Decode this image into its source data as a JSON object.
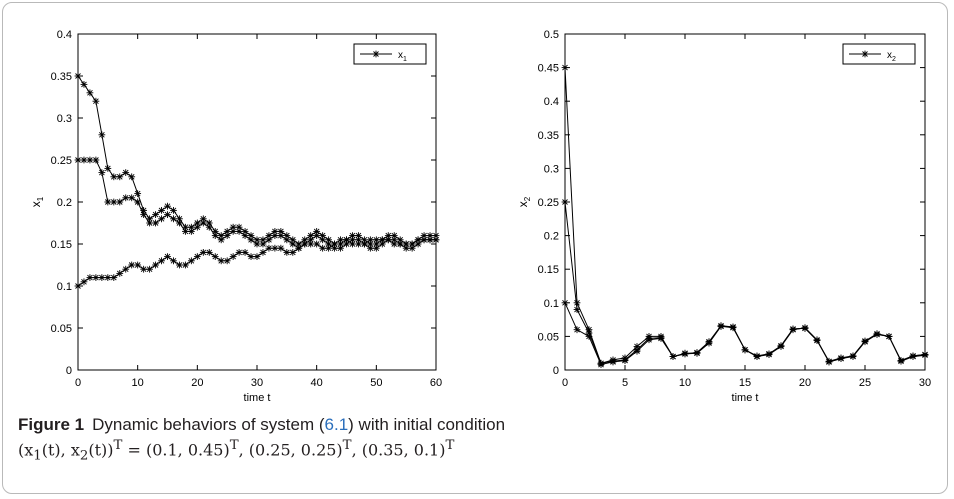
{
  "chart_data": [
    {
      "type": "line",
      "xlabel": "time t",
      "ylabel": "x",
      "ylabel_sub": "1",
      "xlim": [
        0,
        60
      ],
      "ylim": [
        0,
        0.4
      ],
      "xticks": [
        0,
        10,
        20,
        30,
        40,
        50,
        60
      ],
      "yticks": [
        0,
        0.05,
        0.1,
        0.15,
        0.2,
        0.25,
        0.3,
        0.35,
        0.4
      ],
      "ytick_labels": [
        "0",
        "0.05",
        "0.1",
        "0.15",
        "0.2",
        "0.25",
        "0.3",
        "0.35",
        "0.4"
      ],
      "legend": {
        "label": "x",
        "sub": "1",
        "position": "top-right"
      },
      "marker": "asterisk",
      "series": [
        {
          "x": [
            0,
            1,
            2,
            3,
            4,
            5,
            6,
            7,
            8,
            9,
            10,
            11,
            12,
            13,
            14,
            15,
            16,
            17,
            18,
            19,
            20,
            21,
            22,
            23,
            24,
            25,
            26,
            27,
            28,
            29,
            30,
            31,
            32,
            33,
            34,
            35,
            36,
            37,
            38,
            39,
            40,
            41,
            42,
            43,
            44,
            45,
            46,
            47,
            48,
            49,
            50,
            51,
            52,
            53,
            54,
            55,
            56,
            57,
            58,
            59,
            60
          ],
          "values": [
            0.35,
            0.34,
            0.33,
            0.32,
            0.28,
            0.24,
            0.23,
            0.23,
            0.235,
            0.23,
            0.21,
            0.19,
            0.18,
            0.185,
            0.19,
            0.195,
            0.19,
            0.18,
            0.17,
            0.17,
            0.175,
            0.18,
            0.175,
            0.165,
            0.16,
            0.165,
            0.17,
            0.17,
            0.165,
            0.16,
            0.155,
            0.155,
            0.16,
            0.165,
            0.165,
            0.16,
            0.155,
            0.15,
            0.155,
            0.16,
            0.165,
            0.16,
            0.155,
            0.15,
            0.15,
            0.155,
            0.16,
            0.16,
            0.155,
            0.15,
            0.15,
            0.155,
            0.16,
            0.16,
            0.155,
            0.15,
            0.15,
            0.155,
            0.16,
            0.16,
            0.16
          ]
        },
        {
          "x": [
            0,
            1,
            2,
            3,
            4,
            5,
            6,
            7,
            8,
            9,
            10,
            11,
            12,
            13,
            14,
            15,
            16,
            17,
            18,
            19,
            20,
            21,
            22,
            23,
            24,
            25,
            26,
            27,
            28,
            29,
            30,
            31,
            32,
            33,
            34,
            35,
            36,
            37,
            38,
            39,
            40,
            41,
            42,
            43,
            44,
            45,
            46,
            47,
            48,
            49,
            50,
            51,
            52,
            53,
            54,
            55,
            56,
            57,
            58,
            59,
            60
          ],
          "values": [
            0.25,
            0.25,
            0.25,
            0.25,
            0.235,
            0.2,
            0.2,
            0.2,
            0.205,
            0.205,
            0.2,
            0.185,
            0.175,
            0.175,
            0.18,
            0.185,
            0.18,
            0.175,
            0.165,
            0.165,
            0.17,
            0.175,
            0.17,
            0.16,
            0.155,
            0.16,
            0.165,
            0.165,
            0.16,
            0.155,
            0.15,
            0.15,
            0.155,
            0.16,
            0.16,
            0.155,
            0.15,
            0.145,
            0.15,
            0.155,
            0.16,
            0.155,
            0.15,
            0.145,
            0.145,
            0.15,
            0.155,
            0.155,
            0.15,
            0.145,
            0.145,
            0.15,
            0.155,
            0.155,
            0.15,
            0.145,
            0.145,
            0.15,
            0.155,
            0.155,
            0.155
          ]
        },
        {
          "x": [
            0,
            1,
            2,
            3,
            4,
            5,
            6,
            7,
            8,
            9,
            10,
            11,
            12,
            13,
            14,
            15,
            16,
            17,
            18,
            19,
            20,
            21,
            22,
            23,
            24,
            25,
            26,
            27,
            28,
            29,
            30,
            31,
            32,
            33,
            34,
            35,
            36,
            37,
            38,
            39,
            40,
            41,
            42,
            43,
            44,
            45,
            46,
            47,
            48,
            49,
            50,
            51,
            52,
            53,
            54,
            55,
            56,
            57,
            58,
            59,
            60
          ],
          "values": [
            0.1,
            0.105,
            0.11,
            0.11,
            0.11,
            0.11,
            0.11,
            0.115,
            0.12,
            0.125,
            0.125,
            0.12,
            0.12,
            0.125,
            0.13,
            0.135,
            0.13,
            0.125,
            0.125,
            0.13,
            0.135,
            0.14,
            0.14,
            0.135,
            0.13,
            0.13,
            0.135,
            0.14,
            0.14,
            0.135,
            0.135,
            0.14,
            0.145,
            0.145,
            0.145,
            0.14,
            0.14,
            0.145,
            0.15,
            0.15,
            0.15,
            0.145,
            0.145,
            0.15,
            0.155,
            0.155,
            0.15,
            0.15,
            0.15,
            0.155,
            0.155,
            0.155,
            0.155,
            0.15,
            0.15,
            0.15,
            0.15,
            0.155,
            0.155,
            0.155,
            0.155
          ]
        }
      ]
    },
    {
      "type": "line",
      "xlabel": "time t",
      "ylabel": "x",
      "ylabel_sub": "2",
      "xlim": [
        0,
        30
      ],
      "ylim": [
        0,
        0.5
      ],
      "xticks": [
        0,
        5,
        10,
        15,
        20,
        25,
        30
      ],
      "yticks": [
        0,
        0.05,
        0.1,
        0.15,
        0.2,
        0.25,
        0.3,
        0.35,
        0.4,
        0.45,
        0.5
      ],
      "ytick_labels": [
        "0",
        "0.05",
        "0.1",
        "0.15",
        "0.2",
        "0.25",
        "0.3",
        "0.35",
        "0.4",
        "0.45",
        "0.5"
      ],
      "legend": {
        "label": "x",
        "sub": "2",
        "position": "top-right"
      },
      "marker": "asterisk",
      "series": [
        {
          "x": [
            0,
            1,
            2,
            3,
            4,
            5,
            6,
            7,
            8,
            9,
            10,
            11,
            12,
            13,
            14,
            15,
            16,
            17,
            18,
            19,
            20,
            21,
            22,
            23,
            24,
            25,
            26,
            27,
            28,
            29,
            30
          ],
          "values": [
            0.45,
            0.1,
            0.06,
            0.01,
            0.015,
            0.018,
            0.035,
            0.05,
            0.05,
            0.02,
            0.025,
            0.025,
            0.04,
            0.065,
            0.063,
            0.03,
            0.02,
            0.023,
            0.035,
            0.06,
            0.063,
            0.045,
            0.012,
            0.017,
            0.02,
            0.042,
            0.053,
            0.05,
            0.013,
            0.02,
            0.022
          ]
        },
        {
          "x": [
            0,
            1,
            2,
            3,
            4,
            5,
            6,
            7,
            8,
            9,
            10,
            11,
            12,
            13,
            14,
            15,
            16,
            17,
            18,
            19,
            20,
            21,
            22,
            23,
            24,
            25,
            26,
            27,
            28,
            29,
            30
          ],
          "values": [
            0.25,
            0.09,
            0.055,
            0.01,
            0.013,
            0.015,
            0.03,
            0.047,
            0.048,
            0.02,
            0.024,
            0.025,
            0.042,
            0.066,
            0.064,
            0.03,
            0.02,
            0.024,
            0.036,
            0.061,
            0.062,
            0.044,
            0.012,
            0.017,
            0.021,
            0.043,
            0.054,
            0.05,
            0.014,
            0.021,
            0.023
          ]
        },
        {
          "x": [
            0,
            1,
            2,
            3,
            4,
            5,
            6,
            7,
            8,
            9,
            10,
            11,
            12,
            13,
            14,
            15,
            16,
            17,
            18,
            19,
            20,
            21,
            22,
            23,
            24,
            25,
            26,
            27,
            28,
            29,
            30
          ],
          "values": [
            0.1,
            0.06,
            0.05,
            0.008,
            0.012,
            0.014,
            0.028,
            0.045,
            0.047,
            0.02,
            0.024,
            0.026,
            0.042,
            0.065,
            0.064,
            0.03,
            0.021,
            0.024,
            0.036,
            0.061,
            0.062,
            0.044,
            0.013,
            0.018,
            0.021,
            0.043,
            0.053,
            0.05,
            0.014,
            0.021,
            0.023
          ]
        }
      ]
    }
  ],
  "caption": {
    "label": "Figure 1",
    "text_before_ref": "Dynamic behaviors of system (",
    "ref": "6.1",
    "text_after_ref": ") with initial condition",
    "line2_lhs": "(x",
    "line2_rest": "(t), x",
    "line2_rest2": "(t))",
    "line2_eq": " = (0.1, 0.45)",
    "line2_b": ", (0.25, 0.25)",
    "line2_c": ", (0.35, 0.1)",
    "sub1": "1",
    "sub2": "2",
    "sup": "T"
  }
}
